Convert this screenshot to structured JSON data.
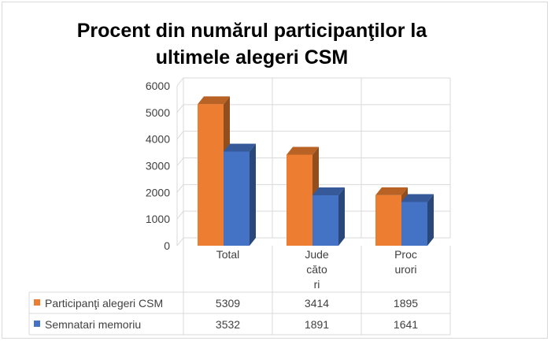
{
  "chart_data": {
    "type": "bar",
    "title_line1": "Procent din numărul participanţilor la",
    "title_line2": "ultimele alegeri CSM",
    "categories": [
      [
        "Total"
      ],
      [
        "Jude",
        "căto",
        "ri"
      ],
      [
        "Proc",
        "urori"
      ]
    ],
    "series": [
      {
        "name": "Participanţi alegeri CSM",
        "values": [
          5309,
          3414,
          1895
        ],
        "color": "#ed7d31"
      },
      {
        "name": "Semnatari memoriu",
        "values": [
          3532,
          1891,
          1641
        ],
        "color": "#4472c4"
      }
    ],
    "yticks": [
      "0",
      "1000",
      "2000",
      "3000",
      "4000",
      "5000",
      "6000"
    ],
    "ylim": [
      0,
      6000
    ],
    "grid": true,
    "legend": "data-table"
  }
}
